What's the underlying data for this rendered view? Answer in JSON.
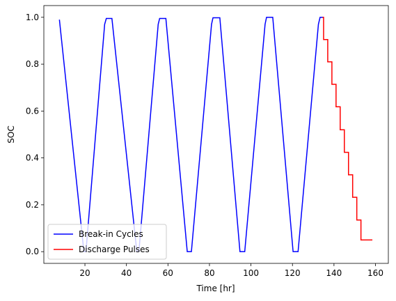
{
  "chart_data": {
    "type": "line",
    "xlabel": "Time [hr]",
    "ylabel": "SOC",
    "xlim": [
      0.2,
      166.2
    ],
    "ylim": [
      -0.05,
      1.05
    ],
    "xticks": [
      20,
      40,
      60,
      80,
      100,
      120,
      140,
      160
    ],
    "yticks": [
      {
        "value": 0,
        "label": "0.0"
      },
      {
        "value": 0.2,
        "label": "0.2"
      },
      {
        "value": 0.4,
        "label": "0.4"
      },
      {
        "value": 0.6,
        "label": "0.6"
      },
      {
        "value": 0.8,
        "label": "0.8"
      },
      {
        "value": 1,
        "label": "1.0"
      }
    ],
    "legend": "lower left",
    "series": [
      {
        "name": "Break-in Cycles",
        "color": "#0000ff",
        "x": [
          7.7,
          19.5,
          20.5,
          29.5,
          30.3,
          33,
          45,
          46,
          55.3,
          56,
          59,
          69.3,
          71.3,
          81,
          81.7,
          85,
          94.7,
          97,
          106.8,
          107.5,
          110.5,
          120.3,
          122.7,
          132.5,
          133.3,
          135
        ],
        "values": [
          0.99,
          0,
          0,
          0.97,
          0.995,
          0.995,
          0,
          0,
          0.97,
          0.995,
          0.995,
          0,
          0,
          0.97,
          0.998,
          0.998,
          0,
          0,
          0.97,
          1,
          1,
          0,
          0,
          0.97,
          1,
          1
        ]
      },
      {
        "name": "Discharge Pulses",
        "color": "#ff0000",
        "x": [
          134.5,
          135,
          135,
          137,
          137,
          139,
          139,
          141,
          141,
          143,
          143,
          145,
          145,
          147,
          147,
          149,
          149,
          151,
          151,
          153,
          153,
          155,
          155,
          158.5
        ],
        "values": [
          1,
          1,
          0.905,
          0.905,
          0.81,
          0.81,
          0.714,
          0.714,
          0.618,
          0.618,
          0.52,
          0.52,
          0.424,
          0.424,
          0.328,
          0.328,
          0.232,
          0.232,
          0.135,
          0.135,
          0.05,
          0.05,
          0.05,
          0.05
        ]
      }
    ]
  }
}
